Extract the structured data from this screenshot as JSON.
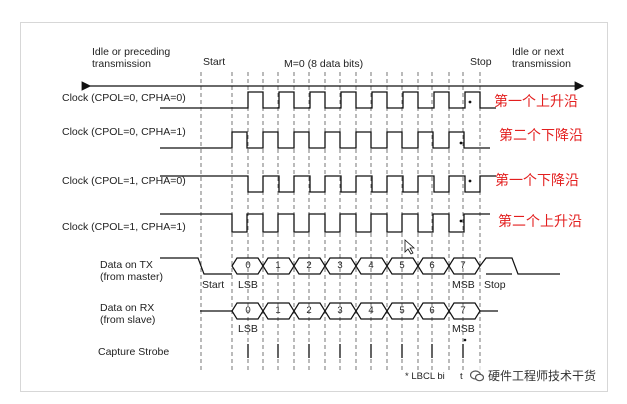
{
  "header": {
    "idle_before": [
      "Idle or preceding",
      "transmission"
    ],
    "start": "Start",
    "frame_info": "M=0 (8 data bits)",
    "stop": "Stop",
    "idle_after": [
      "Idle or next",
      "transmission"
    ]
  },
  "rows": {
    "clk0": "Clock (CPOL=0, CPHA=0)",
    "clk1": "Clock (CPOL=0, CPHA=1)",
    "clk2": "Clock (CPOL=1, CPHA=0)",
    "clk3": "Clock (CPOL=1, CPHA=1)",
    "tx": [
      "Data on TX",
      "(from master)"
    ],
    "rx": [
      "Data on RX",
      "(from slave)"
    ],
    "strobe": "Capture Strobe"
  },
  "annotations": [
    "第一个上升沿",
    "第二个下降沿",
    "第一个下降沿",
    "第二个上升沿"
  ],
  "bits": [
    "0",
    "1",
    "2",
    "3",
    "4",
    "5",
    "6",
    "7"
  ],
  "bus_labels": {
    "tx_start": "Start",
    "tx_lsb": "LSB",
    "tx_msb": "MSB",
    "tx_stop": "Stop",
    "rx_lsb": "LSB",
    "rx_msb": "MSB"
  },
  "footnote": "* LBCL bi",
  "footnote_partial": "t",
  "watermark": "硬件工程师技术干货",
  "colors": {
    "annotation": "#e31f1f",
    "line": "#111111",
    "dash": "#555555"
  }
}
